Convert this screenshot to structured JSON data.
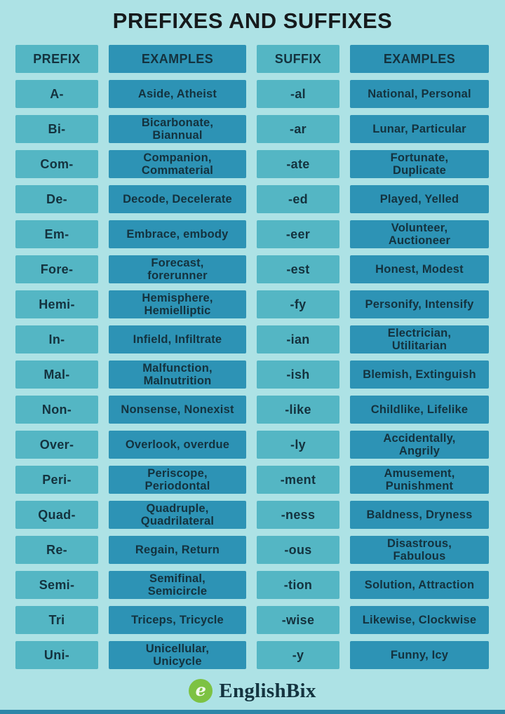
{
  "title": "PREFIXES AND SUFFIXES",
  "table": {
    "headers": [
      "PREFIX",
      "EXAMPLES",
      "SUFFIX",
      "EXAMPLES"
    ],
    "rows": [
      {
        "prefix": "A-",
        "prefix_examples": "Aside, Atheist",
        "suffix": "-al",
        "suffix_examples": "National, Personal"
      },
      {
        "prefix": "Bi-",
        "prefix_examples": "Bicarbonate,\nBiannual",
        "suffix": "-ar",
        "suffix_examples": "Lunar, Particular"
      },
      {
        "prefix": "Com-",
        "prefix_examples": "Companion,\nCommaterial",
        "suffix": "-ate",
        "suffix_examples": "Fortunate,\nDuplicate"
      },
      {
        "prefix": "De-",
        "prefix_examples": "Decode, Decelerate",
        "suffix": "-ed",
        "suffix_examples": "Played, Yelled"
      },
      {
        "prefix": "Em-",
        "prefix_examples": "Embrace, embody",
        "suffix": "-eer",
        "suffix_examples": "Volunteer,\nAuctioneer"
      },
      {
        "prefix": "Fore-",
        "prefix_examples": "Forecast,\nforerunner",
        "suffix": "-est",
        "suffix_examples": "Honest, Modest"
      },
      {
        "prefix": "Hemi-",
        "prefix_examples": "Hemisphere,\nHemielliptic",
        "suffix": "-fy",
        "suffix_examples": "Personify, Intensify"
      },
      {
        "prefix": "In-",
        "prefix_examples": "Infield, Infiltrate",
        "suffix": "-ian",
        "suffix_examples": "Electrician,\nUtilitarian"
      },
      {
        "prefix": "Mal-",
        "prefix_examples": "Malfunction,\nMalnutrition",
        "suffix": "-ish",
        "suffix_examples": "Blemish, Extinguish"
      },
      {
        "prefix": "Non-",
        "prefix_examples": "Nonsense, Nonexist",
        "suffix": "-like",
        "suffix_examples": "Childlike, Lifelike"
      },
      {
        "prefix": "Over-",
        "prefix_examples": "Overlook, overdue",
        "suffix": "-ly",
        "suffix_examples": "Accidentally,\nAngrily"
      },
      {
        "prefix": "Peri-",
        "prefix_examples": "Periscope,\nPeriodontal",
        "suffix": "-ment",
        "suffix_examples": "Amusement,\nPunishment"
      },
      {
        "prefix": "Quad-",
        "prefix_examples": "Quadruple,\nQuadrilateral",
        "suffix": "-ness",
        "suffix_examples": "Baldness, Dryness"
      },
      {
        "prefix": "Re-",
        "prefix_examples": "Regain, Return",
        "suffix": "-ous",
        "suffix_examples": "Disastrous,\nFabulous"
      },
      {
        "prefix": "Semi-",
        "prefix_examples": "Semifinal,\nSemicircle",
        "suffix": "-tion",
        "suffix_examples": "Solution, Attraction"
      },
      {
        "prefix": "Tri",
        "prefix_examples": "Triceps, Tricycle",
        "suffix": "-wise",
        "suffix_examples": "Likewise, Clockwise"
      },
      {
        "prefix": "Uni-",
        "prefix_examples": "Unicellular,\nUnicycle",
        "suffix": "-y",
        "suffix_examples": "Funny, Icy"
      }
    ]
  },
  "footer": {
    "brand": "EnglishBix",
    "logo_letter": "e"
  },
  "colors": {
    "background": "#ade2e5",
    "label_cell": "#54b6c4",
    "example_cell": "#2d93b5",
    "text": "#14323e",
    "logo_green": "#7dc243",
    "bottom_bar": "#2e86a8"
  }
}
